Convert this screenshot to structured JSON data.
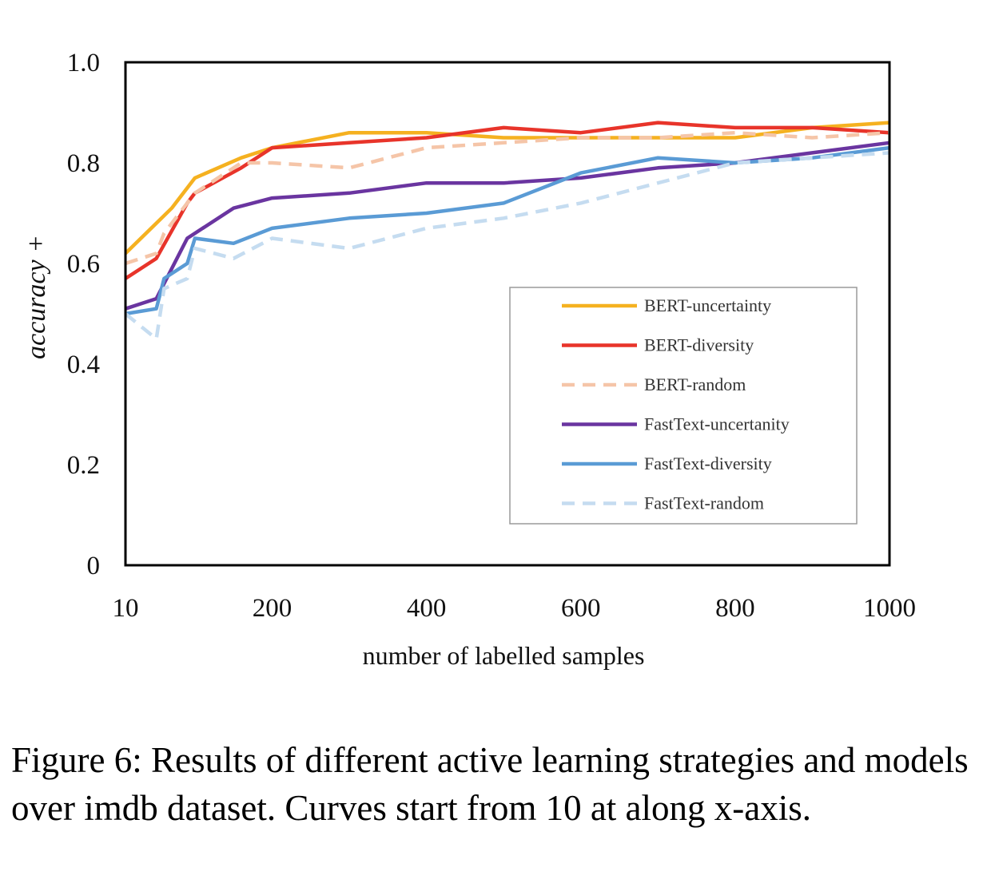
{
  "chart_data": {
    "type": "line",
    "title": "",
    "xlabel": "number of labelled samples",
    "ylabel": "accuracy +",
    "xlim": [
      10,
      1000
    ],
    "ylim": [
      0,
      1.0
    ],
    "x_ticks": [
      10,
      200,
      400,
      600,
      800,
      1000
    ],
    "x_tick_labels": [
      "10",
      "200",
      "400",
      "600",
      "800",
      "1000"
    ],
    "y_ticks": [
      0,
      0.2,
      0.4,
      0.6,
      0.8,
      1.0
    ],
    "y_tick_labels": [
      "0",
      "0.2",
      "0.4",
      "0.6",
      "0.8",
      "1.0"
    ],
    "grid": false,
    "legend_position": "lower-right",
    "series": [
      {
        "name": "BERT-uncertainty",
        "color": "#F5B120",
        "dash": "solid",
        "points": [
          [
            10,
            0.62
          ],
          [
            50,
            0.68
          ],
          [
            70,
            0.71
          ],
          [
            100,
            0.77
          ],
          [
            160,
            0.81
          ],
          [
            200,
            0.83
          ],
          [
            300,
            0.86
          ],
          [
            400,
            0.86
          ],
          [
            500,
            0.85
          ],
          [
            600,
            0.85
          ],
          [
            700,
            0.85
          ],
          [
            800,
            0.85
          ],
          [
            900,
            0.87
          ],
          [
            1000,
            0.88
          ]
        ]
      },
      {
        "name": "BERT-diversity",
        "color": "#E8342A",
        "dash": "solid",
        "points": [
          [
            10,
            0.57
          ],
          [
            50,
            0.61
          ],
          [
            90,
            0.72
          ],
          [
            100,
            0.74
          ],
          [
            160,
            0.79
          ],
          [
            200,
            0.83
          ],
          [
            300,
            0.84
          ],
          [
            400,
            0.85
          ],
          [
            500,
            0.87
          ],
          [
            600,
            0.86
          ],
          [
            700,
            0.88
          ],
          [
            800,
            0.87
          ],
          [
            900,
            0.87
          ],
          [
            1000,
            0.86
          ]
        ]
      },
      {
        "name": "BERT-random",
        "color": "#F5C5A8",
        "dash": "dashed",
        "points": [
          [
            10,
            0.6
          ],
          [
            50,
            0.62
          ],
          [
            60,
            0.66
          ],
          [
            100,
            0.74
          ],
          [
            160,
            0.8
          ],
          [
            200,
            0.8
          ],
          [
            300,
            0.79
          ],
          [
            400,
            0.83
          ],
          [
            500,
            0.84
          ],
          [
            600,
            0.85
          ],
          [
            700,
            0.85
          ],
          [
            800,
            0.86
          ],
          [
            900,
            0.85
          ],
          [
            1000,
            0.86
          ]
        ]
      },
      {
        "name": "FastText-uncertanity",
        "color": "#6A35A0",
        "dash": "solid",
        "points": [
          [
            10,
            0.51
          ],
          [
            50,
            0.53
          ],
          [
            60,
            0.56
          ],
          [
            90,
            0.65
          ],
          [
            150,
            0.71
          ],
          [
            200,
            0.73
          ],
          [
            300,
            0.74
          ],
          [
            400,
            0.76
          ],
          [
            500,
            0.76
          ],
          [
            600,
            0.77
          ],
          [
            700,
            0.79
          ],
          [
            800,
            0.8
          ],
          [
            900,
            0.82
          ],
          [
            1000,
            0.84
          ]
        ]
      },
      {
        "name": "FastText-diversity",
        "color": "#5A9BD5",
        "dash": "solid",
        "points": [
          [
            10,
            0.5
          ],
          [
            50,
            0.51
          ],
          [
            60,
            0.57
          ],
          [
            90,
            0.6
          ],
          [
            100,
            0.65
          ],
          [
            150,
            0.64
          ],
          [
            200,
            0.67
          ],
          [
            300,
            0.69
          ],
          [
            400,
            0.7
          ],
          [
            500,
            0.72
          ],
          [
            600,
            0.78
          ],
          [
            700,
            0.81
          ],
          [
            800,
            0.8
          ],
          [
            900,
            0.81
          ],
          [
            1000,
            0.83
          ]
        ]
      },
      {
        "name": "FastText-random",
        "color": "#C5DCF0",
        "dash": "dashed",
        "points": [
          [
            10,
            0.5
          ],
          [
            50,
            0.45
          ],
          [
            60,
            0.55
          ],
          [
            90,
            0.57
          ],
          [
            100,
            0.63
          ],
          [
            150,
            0.61
          ],
          [
            200,
            0.65
          ],
          [
            300,
            0.63
          ],
          [
            400,
            0.67
          ],
          [
            500,
            0.69
          ],
          [
            600,
            0.72
          ],
          [
            700,
            0.76
          ],
          [
            800,
            0.8
          ],
          [
            900,
            0.81
          ],
          [
            1000,
            0.82
          ]
        ]
      }
    ]
  },
  "caption": "Figure 6: Results of different active learning strategies and models over imdb dataset. Curves start from 10 at along x-axis."
}
